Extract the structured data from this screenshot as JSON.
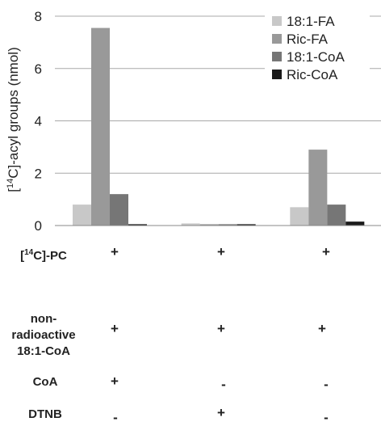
{
  "chart_data": {
    "type": "bar",
    "ylabel_prefix": "[",
    "ylabel_sup": "14",
    "ylabel_suffix": "C]-acyl groups (nmol)",
    "ylim": [
      0,
      8
    ],
    "yticks": [
      "0",
      "2",
      "4",
      "6",
      "8"
    ],
    "grid": true,
    "legend_position": "top-right",
    "groups": 3,
    "series": [
      {
        "name": "18:1-FA",
        "color": "#c8c8c8",
        "values": [
          0.8,
          0.08,
          0.7
        ]
      },
      {
        "name": "Ric-FA",
        "color": "#999999",
        "values": [
          7.55,
          0.05,
          2.9
        ]
      },
      {
        "name": "18:1-CoA",
        "color": "#767676",
        "values": [
          1.2,
          0.05,
          0.8
        ]
      },
      {
        "name": "Ric-CoA",
        "color": "#1a1a1a",
        "values": [
          0.05,
          0.05,
          0.15
        ]
      }
    ]
  },
  "conditions": [
    {
      "label_parts": {
        "pre": "[",
        "sup": "14",
        "post": "C]-PC"
      },
      "values": [
        "+",
        "+",
        "+"
      ]
    },
    {
      "label_lines": [
        "non-",
        "radioactive",
        "18:1-CoA"
      ],
      "values": [
        "+",
        "+",
        "+"
      ]
    },
    {
      "label": "CoA",
      "values": [
        "+",
        "-",
        "-"
      ]
    },
    {
      "label": "DTNB",
      "values": [
        "-",
        "+",
        "-"
      ]
    }
  ]
}
